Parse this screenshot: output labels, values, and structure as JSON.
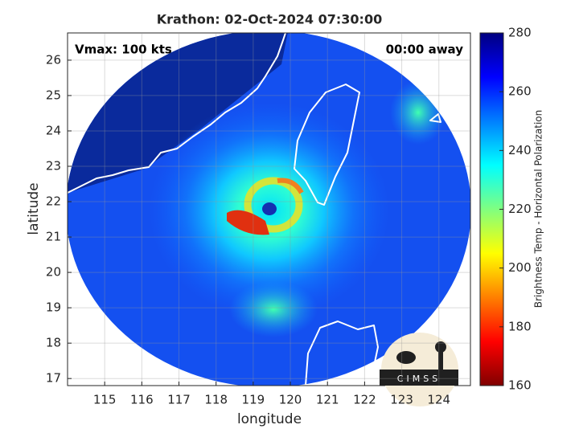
{
  "chart_data": {
    "type": "map",
    "title": "Krathon: 02-Oct-2024 07:30:00",
    "annotations": [
      "Vmax: 100 kts",
      "00:00 away"
    ],
    "x_label": "longitude",
    "y_label": "latitude",
    "xlim": [
      114,
      124.85
    ],
    "ylim": [
      16.8,
      26.77
    ],
    "xticks": [
      115,
      116,
      117,
      118,
      119,
      120,
      121,
      122,
      123,
      124
    ],
    "yticks": [
      17,
      18,
      19,
      20,
      21,
      22,
      23,
      24,
      25,
      26
    ],
    "grid": true,
    "colorbar": {
      "label": "Brightness Temp - Horizontal Polarization",
      "lim": [
        160,
        280
      ],
      "ticks": [
        160,
        180,
        200,
        220,
        240,
        260,
        280
      ]
    }
  },
  "logo": "CIMSS"
}
